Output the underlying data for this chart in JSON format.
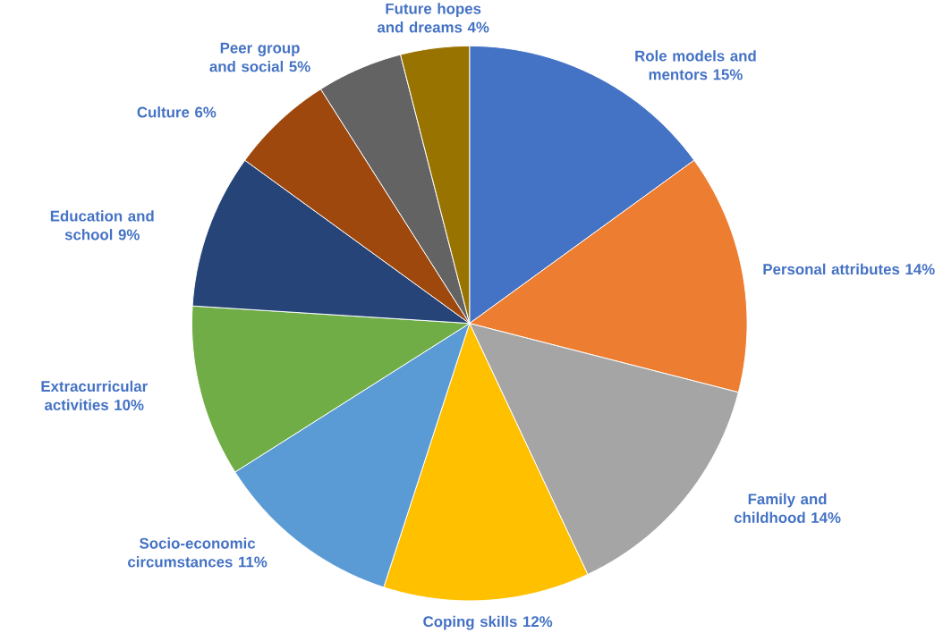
{
  "chart_data": {
    "type": "pie",
    "categories": [
      "Role models and mentors",
      "Personal attributes",
      "Family and childhood",
      "Coping skills",
      "Socio-economic circumstances",
      "Extracurricular activities",
      "Education and school",
      "Culture",
      "Peer group and social",
      "Future hopes and dreams"
    ],
    "values": [
      15,
      14,
      14,
      12,
      11,
      10,
      9,
      6,
      5,
      4
    ],
    "value_labels": [
      "15%",
      "14%",
      "14%",
      "12%",
      "11%",
      "10%",
      "9%",
      "6%",
      "5%",
      "4%"
    ],
    "colors": [
      "#4472c4",
      "#ed7d31",
      "#a5a5a5",
      "#ffc000",
      "#5b9bd5",
      "#70ad47",
      "#264478",
      "#9e480e",
      "#636363",
      "#997300"
    ]
  }
}
